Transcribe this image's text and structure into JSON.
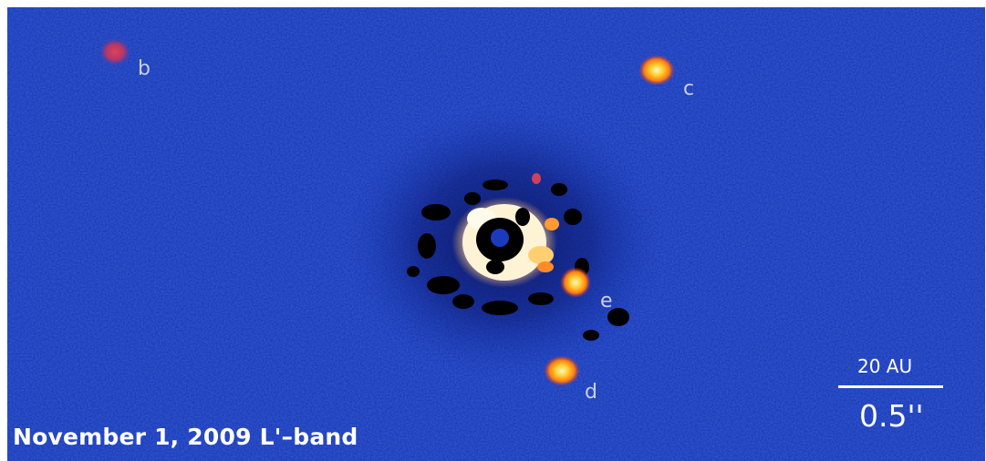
{
  "image": {
    "caption": "November 1, 2009 L'–band",
    "planet_labels": {
      "b": "b",
      "c": "c",
      "d": "d",
      "e": "e"
    },
    "scale_bar": {
      "distance_label": "20 AU",
      "angle_label": "0.5''"
    },
    "colors": {
      "background": "#1535b3",
      "core": "#fff5d8",
      "planet_hot": "#ff9a18",
      "planet_cool": "#c83a5a"
    }
  }
}
